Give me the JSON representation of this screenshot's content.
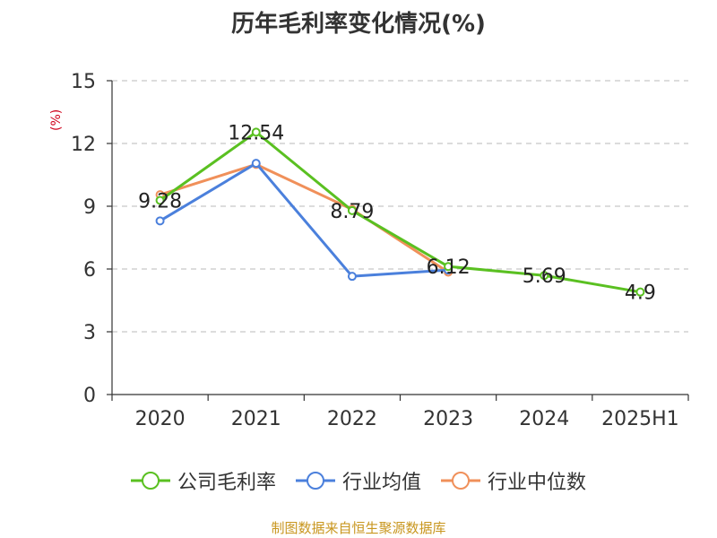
{
  "chart_data": {
    "type": "line",
    "title": "历年毛利率变化情况(%)",
    "ylabel": "(%)",
    "xlabel": "",
    "categories": [
      "2020",
      "2021",
      "2022",
      "2023",
      "2024",
      "2025H1"
    ],
    "ylim": [
      0,
      15
    ],
    "yticks": [
      0,
      3,
      6,
      9,
      12,
      15
    ],
    "grid": true,
    "legend_position": "bottom",
    "series": [
      {
        "name": "公司毛利率",
        "color": "#5ac021",
        "values": [
          9.28,
          12.54,
          8.79,
          6.12,
          5.69,
          4.9
        ],
        "labels": [
          "9.28",
          "12.54",
          "8.79",
          "6.12",
          "5.69",
          "4.9"
        ]
      },
      {
        "name": "行业均值",
        "color": "#4b80dc",
        "values": [
          8.3,
          11.05,
          5.65,
          5.95,
          null,
          null
        ]
      },
      {
        "name": "行业中位数",
        "color": "#f0905a",
        "values": [
          9.55,
          11.0,
          8.85,
          5.85,
          null,
          null
        ]
      }
    ]
  },
  "source_note": "制图数据来自恒生聚源数据库"
}
